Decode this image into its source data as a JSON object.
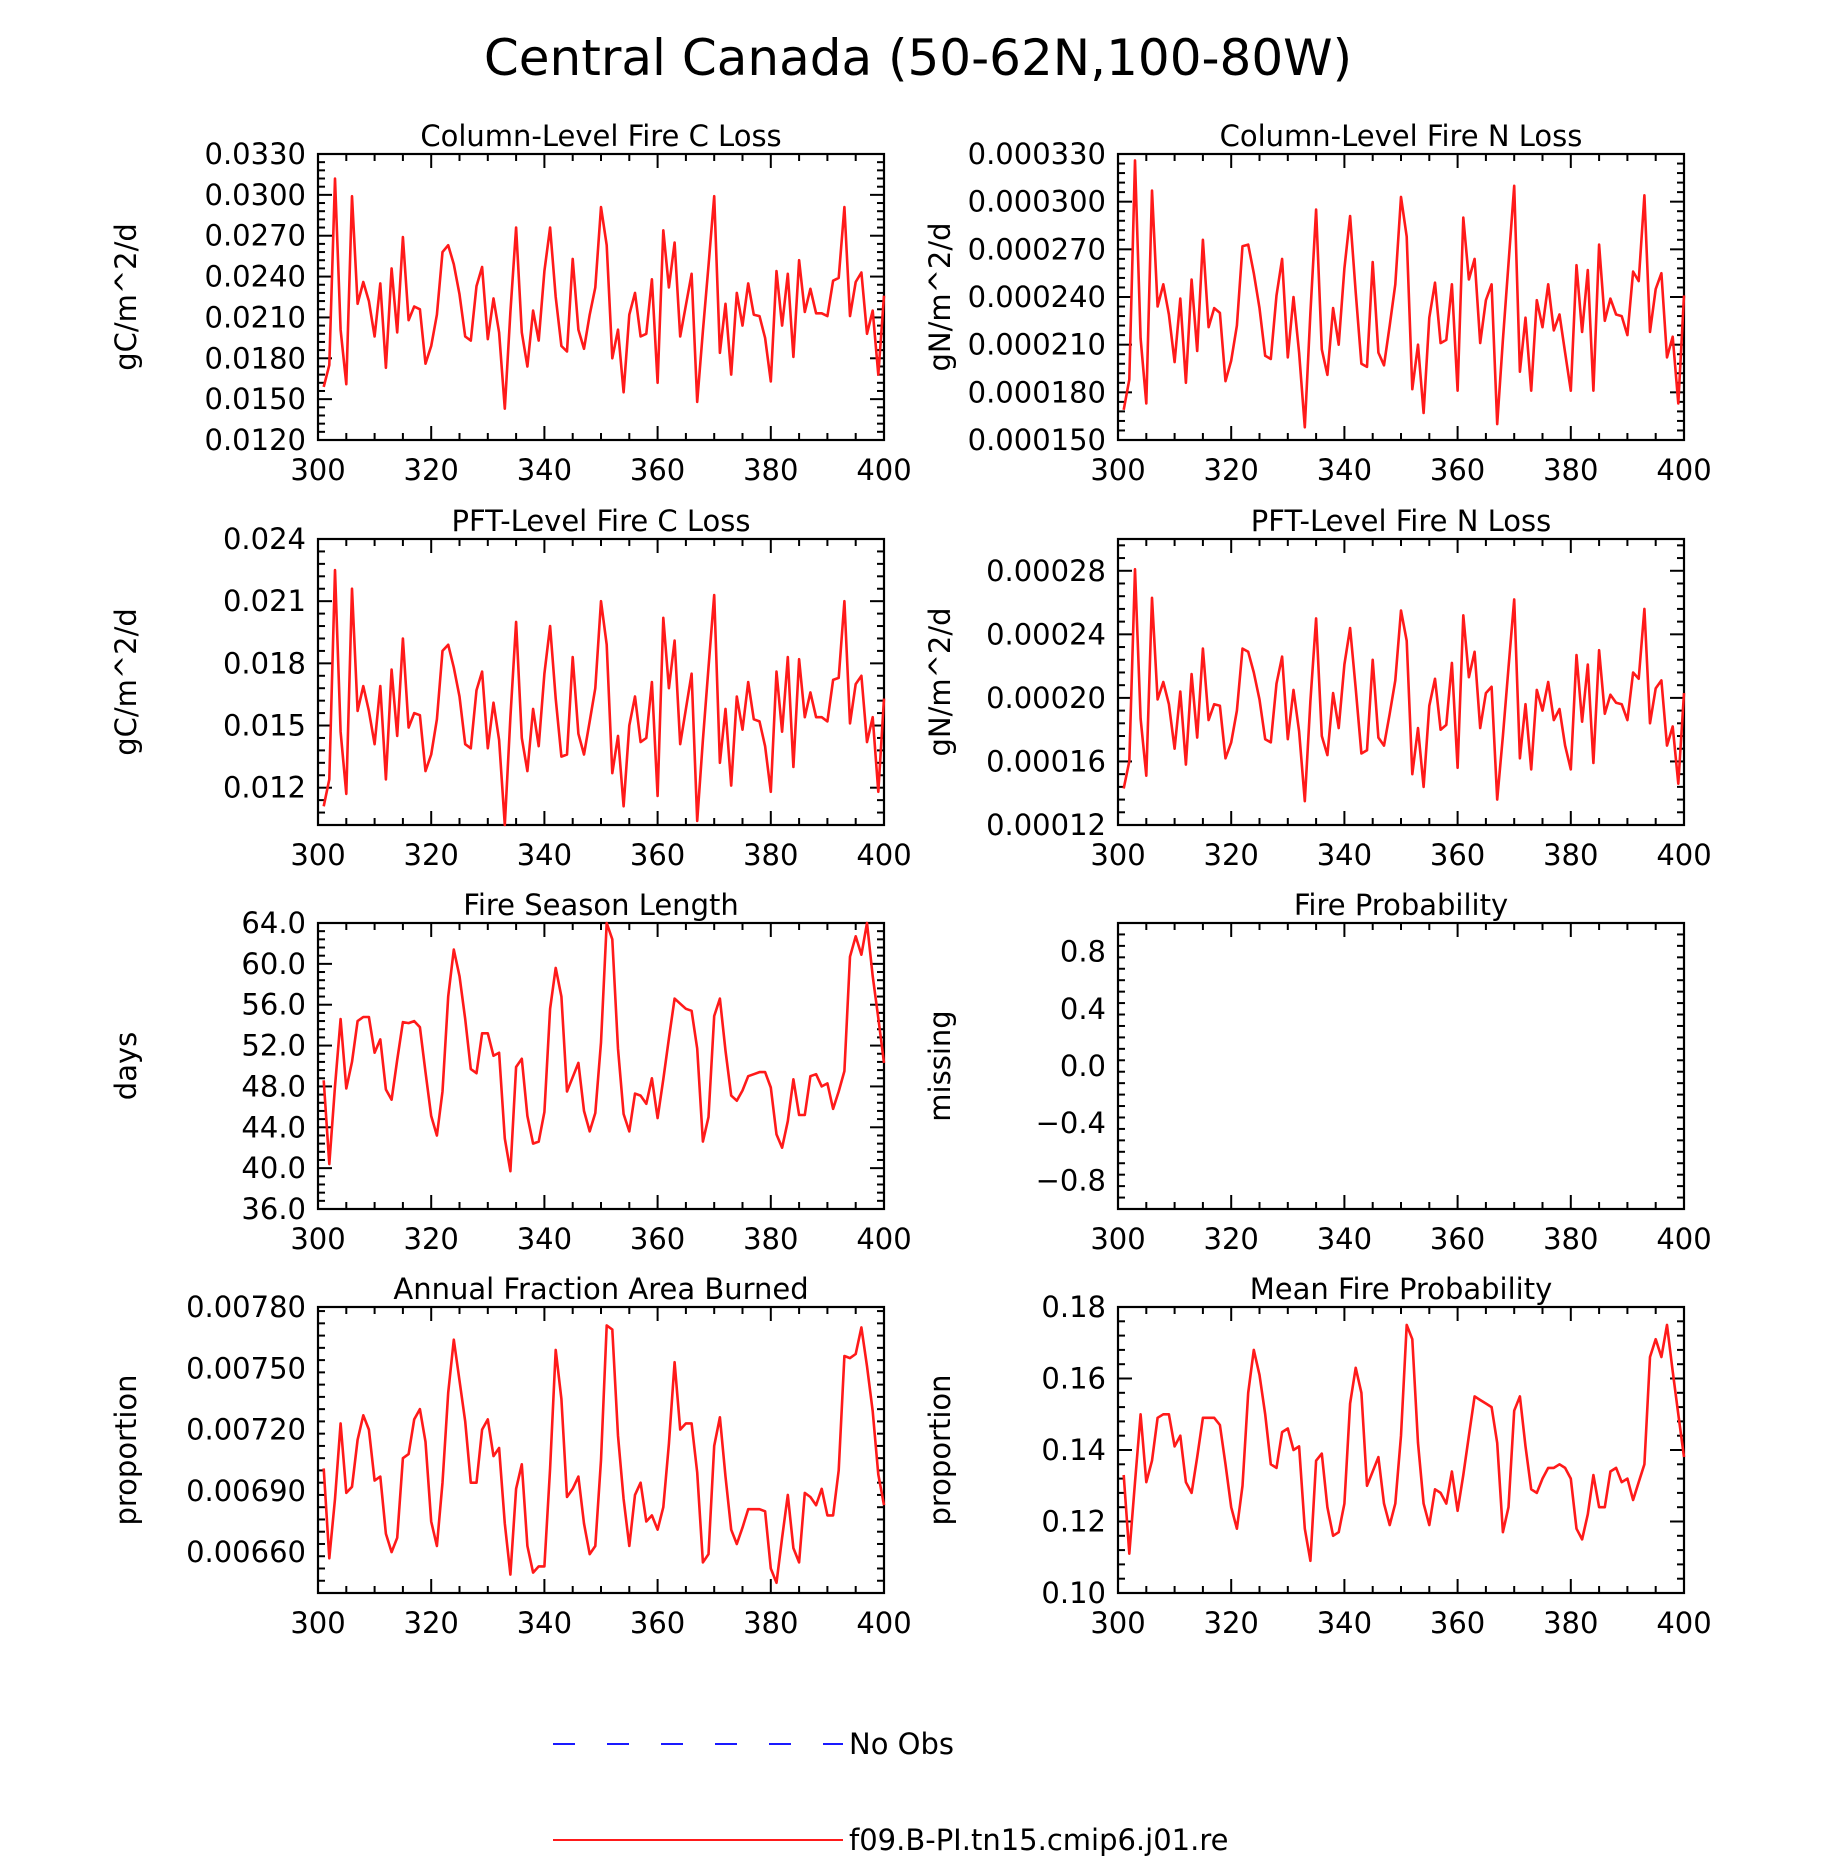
{
  "figure_title": "Central Canada (50-62N,100-80W)",
  "colors": {
    "model": "#ff1a1a",
    "obs": "#1a1aff",
    "axis": "#000000"
  },
  "legend": {
    "items": [
      {
        "label": "No Obs",
        "style": "dashed",
        "color": "#1a1aff"
      },
      {
        "label": "f09.B-PI.tn15.cmip6.j01.re",
        "style": "solid",
        "color": "#ff1a1a"
      }
    ]
  },
  "chart_data": [
    {
      "type": "line",
      "title": "Column-Level Fire C Loss",
      "ylabel": "gC/m^2/d",
      "xlabel": "",
      "xlim": [
        300,
        400
      ],
      "ylim": [
        0.012,
        0.033
      ],
      "xticks": [
        "300",
        "320",
        "340",
        "360",
        "380",
        "400"
      ],
      "yticks": [
        "0.0120",
        "0.0150",
        "0.0180",
        "0.0210",
        "0.0240",
        "0.0270",
        "0.0300",
        "0.0330"
      ],
      "x_start": 301,
      "series": [
        {
          "values": [
            0.0159,
            0.0175,
            0.0312,
            0.0201,
            0.0161,
            0.0299,
            0.022,
            0.0236,
            0.0222,
            0.0196,
            0.0235,
            0.0173,
            0.0246,
            0.0199,
            0.0269,
            0.0208,
            0.0218,
            0.0216,
            0.0176,
            0.0189,
            0.0212,
            0.0258,
            0.0263,
            0.0249,
            0.0227,
            0.0196,
            0.0193,
            0.0233,
            0.0247,
            0.0194,
            0.0224,
            0.0199,
            0.0143,
            0.0214,
            0.0276,
            0.0199,
            0.0174,
            0.0215,
            0.0193,
            0.0244,
            0.0276,
            0.0225,
            0.0189,
            0.0185,
            0.0253,
            0.0201,
            0.0187,
            0.0212,
            0.0232,
            0.0291,
            0.0263,
            0.018,
            0.0201,
            0.0155,
            0.0212,
            0.0228,
            0.0196,
            0.0198,
            0.0238,
            0.0162,
            0.0274,
            0.0232,
            0.0265,
            0.0196,
            0.0219,
            0.0242,
            0.0148,
            0.02,
            0.0248,
            0.0299,
            0.0184,
            0.022,
            0.0168,
            0.0228,
            0.0204,
            0.0235,
            0.0212,
            0.0211,
            0.0195,
            0.0163,
            0.0244,
            0.0204,
            0.0242,
            0.0181,
            0.0252,
            0.0214,
            0.0231,
            0.0213,
            0.0213,
            0.0211,
            0.0237,
            0.0239,
            0.0291,
            0.0211,
            0.0236,
            0.0243,
            0.0198,
            0.0215,
            0.0168,
            0.0226
          ]
        }
      ]
    },
    {
      "type": "line",
      "title": "Column-Level Fire N Loss",
      "ylabel": "gN/m^2/d",
      "xlabel": "",
      "xlim": [
        300,
        400
      ],
      "ylim": [
        0.00015,
        0.00033
      ],
      "xticks": [
        "300",
        "320",
        "340",
        "360",
        "380",
        "400"
      ],
      "yticks": [
        "0.000150",
        "0.000180",
        "0.000210",
        "0.000240",
        "0.000270",
        "0.000300",
        "0.000330"
      ],
      "x_start": 301,
      "series": [
        {
          "values": [
            0.000169,
            0.000188,
            0.000326,
            0.000214,
            0.000173,
            0.000307,
            0.000234,
            0.000248,
            0.000229,
            0.000199,
            0.000239,
            0.000186,
            0.000251,
            0.000206,
            0.000276,
            0.000221,
            0.000233,
            0.00023,
            0.000187,
            0.0002,
            0.000222,
            0.000272,
            0.000273,
            0.000255,
            0.000233,
            0.000203,
            0.000201,
            0.000241,
            0.000264,
            0.000202,
            0.00024,
            0.000205,
            0.000158,
            0.00023,
            0.000295,
            0.000207,
            0.000191,
            0.000233,
            0.00021,
            0.000258,
            0.000291,
            0.000243,
            0.000198,
            0.000196,
            0.000262,
            0.000205,
            0.000197,
            0.000222,
            0.000248,
            0.000303,
            0.000278,
            0.000182,
            0.00021,
            0.000167,
            0.000227,
            0.000249,
            0.000211,
            0.000213,
            0.000248,
            0.000181,
            0.00029,
            0.000251,
            0.000264,
            0.000211,
            0.000238,
            0.000248,
            0.00016,
            0.000213,
            0.000261,
            0.00031,
            0.000193,
            0.000227,
            0.000181,
            0.000238,
            0.000221,
            0.000248,
            0.000219,
            0.000229,
            0.000205,
            0.000181,
            0.00026,
            0.000218,
            0.000257,
            0.000181,
            0.000273,
            0.000225,
            0.000239,
            0.000229,
            0.000228,
            0.000216,
            0.000256,
            0.00025,
            0.000304,
            0.000218,
            0.000245,
            0.000255,
            0.000202,
            0.000215,
            0.000173,
            0.000241
          ]
        }
      ]
    },
    {
      "type": "line",
      "title": "PFT-Level Fire C Loss",
      "ylabel": "gC/m^2/d",
      "xlabel": "",
      "xlim": [
        300,
        400
      ],
      "ylim": [
        0.0102,
        0.024
      ],
      "xticks": [
        "300",
        "320",
        "340",
        "360",
        "380",
        "400"
      ],
      "yticks": [
        "0.012",
        "0.015",
        "0.018",
        "0.021",
        "0.024"
      ],
      "x_start": 301,
      "series": [
        {
          "values": [
            0.0111,
            0.0124,
            0.0225,
            0.0147,
            0.0117,
            0.0216,
            0.0157,
            0.0169,
            0.0157,
            0.0141,
            0.0169,
            0.0124,
            0.0177,
            0.0145,
            0.0192,
            0.0149,
            0.0156,
            0.0155,
            0.0128,
            0.0136,
            0.0153,
            0.0186,
            0.0189,
            0.0178,
            0.0164,
            0.0141,
            0.0139,
            0.0167,
            0.0176,
            0.0139,
            0.0161,
            0.0143,
            0.0102,
            0.0154,
            0.02,
            0.0144,
            0.0128,
            0.0158,
            0.014,
            0.0175,
            0.0198,
            0.0163,
            0.0135,
            0.0136,
            0.0183,
            0.0146,
            0.0136,
            0.0152,
            0.0168,
            0.021,
            0.0189,
            0.0127,
            0.0145,
            0.0111,
            0.015,
            0.0164,
            0.0142,
            0.0144,
            0.0171,
            0.0116,
            0.0202,
            0.0168,
            0.0191,
            0.0141,
            0.0158,
            0.0175,
            0.0104,
            0.0143,
            0.0178,
            0.0213,
            0.0132,
            0.0158,
            0.0121,
            0.0164,
            0.0148,
            0.0171,
            0.0153,
            0.0152,
            0.014,
            0.0118,
            0.0176,
            0.0147,
            0.0183,
            0.013,
            0.0182,
            0.0154,
            0.0166,
            0.0154,
            0.0154,
            0.0152,
            0.0172,
            0.0173,
            0.021,
            0.0151,
            0.017,
            0.0174,
            0.0142,
            0.0154,
            0.0118,
            0.0163
          ]
        }
      ]
    },
    {
      "type": "line",
      "title": "PFT-Level Fire N Loss",
      "ylabel": "gN/m^2/d",
      "xlabel": "",
      "xlim": [
        300,
        400
      ],
      "ylim": [
        0.00012,
        0.0003
      ],
      "xticks": [
        "300",
        "320",
        "340",
        "360",
        "380",
        "400"
      ],
      "yticks": [
        "0.00012",
        "0.00016",
        "0.00020",
        "0.00024",
        "0.00028"
      ],
      "x_start": 301,
      "series": [
        {
          "values": [
            0.000143,
            0.00016,
            0.000281,
            0.000187,
            0.000151,
            0.000263,
            0.000199,
            0.00021,
            0.000196,
            0.000168,
            0.000204,
            0.000158,
            0.000215,
            0.000175,
            0.000231,
            0.000186,
            0.000196,
            0.000195,
            0.000162,
            0.000172,
            0.000192,
            0.000231,
            0.000229,
            0.000216,
            0.000199,
            0.000174,
            0.000172,
            0.000209,
            0.000226,
            0.000174,
            0.000205,
            0.000179,
            0.000135,
            0.000198,
            0.00025,
            0.000176,
            0.000164,
            0.000203,
            0.000181,
            0.000221,
            0.000244,
            0.000206,
            0.000165,
            0.000167,
            0.000224,
            0.000175,
            0.00017,
            0.00019,
            0.000211,
            0.000255,
            0.000236,
            0.000152,
            0.000181,
            0.000144,
            0.000195,
            0.000212,
            0.00018,
            0.000183,
            0.000222,
            0.000156,
            0.000252,
            0.000213,
            0.000229,
            0.000181,
            0.000203,
            0.000207,
            0.000136,
            0.000176,
            0.000219,
            0.000262,
            0.000162,
            0.000196,
            0.000155,
            0.000205,
            0.000192,
            0.00021,
            0.000186,
            0.000193,
            0.00017,
            0.000155,
            0.000227,
            0.000185,
            0.000221,
            0.000159,
            0.00023,
            0.00019,
            0.000202,
            0.000197,
            0.000196,
            0.000186,
            0.000216,
            0.000212,
            0.000256,
            0.000184,
            0.000206,
            0.000211,
            0.00017,
            0.000182,
            0.000146,
            0.000203
          ]
        }
      ]
    },
    {
      "type": "line",
      "title": "Fire Season Length",
      "ylabel": "days",
      "xlabel": "",
      "xlim": [
        300,
        400
      ],
      "ylim": [
        36,
        64
      ],
      "xticks": [
        "300",
        "320",
        "340",
        "360",
        "380",
        "400"
      ],
      "yticks": [
        "36.0",
        "40.0",
        "44.0",
        "48.0",
        "52.0",
        "56.0",
        "60.0",
        "64.0"
      ],
      "x_start": 301,
      "series": [
        {
          "values": [
            48.6,
            40.4,
            48.0,
            54.6,
            47.8,
            50.4,
            54.4,
            54.8,
            54.8,
            51.3,
            52.6,
            47.7,
            46.7,
            50.6,
            54.3,
            54.2,
            54.4,
            53.8,
            49.4,
            45.1,
            43.2,
            47.5,
            56.8,
            61.4,
            58.8,
            54.6,
            49.7,
            49.3,
            53.2,
            53.2,
            51.0,
            51.3,
            42.9,
            39.7,
            49.9,
            50.7,
            45.1,
            42.4,
            42.6,
            45.5,
            55.6,
            59.6,
            56.8,
            47.5,
            48.9,
            50.3,
            45.6,
            43.6,
            45.4,
            52.3,
            64.0,
            62.4,
            51.7,
            45.3,
            43.6,
            47.3,
            47.1,
            46.3,
            48.8,
            44.9,
            48.7,
            52.7,
            56.6,
            56.1,
            55.6,
            55.4,
            51.7,
            42.6,
            45.0,
            54.9,
            56.6,
            51.5,
            47.1,
            46.6,
            47.6,
            49.0,
            49.2,
            49.4,
            49.4,
            47.9,
            43.3,
            42.0,
            44.6,
            48.7,
            45.2,
            45.2,
            49.0,
            49.2,
            48.0,
            48.3,
            45.8,
            47.5,
            49.5,
            60.7,
            62.7,
            60.9,
            64.0,
            58.8,
            54.7,
            50.3
          ]
        }
      ]
    },
    {
      "type": "line",
      "title": "Fire Probability",
      "ylabel": "missing",
      "xlabel": "",
      "xlim": [
        300,
        400
      ],
      "ylim": [
        -1,
        1
      ],
      "xticks": [
        "300",
        "320",
        "340",
        "360",
        "380",
        "400"
      ],
      "yticks": [
        "-0.8",
        "-0.4",
        "0.0",
        "0.4",
        "0.8"
      ],
      "ytick_values": [
        -0.8,
        -0.4,
        0,
        0.4,
        0.8
      ],
      "x_start": 301,
      "series": []
    },
    {
      "type": "line",
      "title": "Annual Fraction Area Burned",
      "ylabel": "proportion",
      "xlabel": "",
      "xlim": [
        300,
        400
      ],
      "ylim": [
        0.0064,
        0.0078
      ],
      "xticks": [
        "300",
        "320",
        "340",
        "360",
        "380",
        "400"
      ],
      "yticks": [
        "0.00660",
        "0.00690",
        "0.00720",
        "0.00750",
        "0.00780"
      ],
      "x_start": 301,
      "series": [
        {
          "values": [
            0.00701,
            0.00657,
            0.00686,
            0.00723,
            0.00689,
            0.00692,
            0.00715,
            0.00727,
            0.0072,
            0.00695,
            0.00697,
            0.00669,
            0.0066,
            0.00667,
            0.00706,
            0.00708,
            0.00725,
            0.0073,
            0.00714,
            0.00675,
            0.00663,
            0.00694,
            0.00738,
            0.00764,
            0.00744,
            0.00724,
            0.00694,
            0.00694,
            0.0072,
            0.00725,
            0.00707,
            0.00711,
            0.00674,
            0.00649,
            0.00691,
            0.00703,
            0.00663,
            0.0065,
            0.00653,
            0.00653,
            0.00701,
            0.00759,
            0.00735,
            0.00687,
            0.00691,
            0.00697,
            0.00674,
            0.00659,
            0.00663,
            0.00705,
            0.00771,
            0.00769,
            0.00717,
            0.00686,
            0.00663,
            0.00688,
            0.00694,
            0.00675,
            0.00678,
            0.00671,
            0.00682,
            0.00713,
            0.00753,
            0.0072,
            0.00723,
            0.00723,
            0.00699,
            0.00655,
            0.00659,
            0.00712,
            0.00726,
            0.00697,
            0.00671,
            0.00664,
            0.00672,
            0.00681,
            0.00681,
            0.00681,
            0.0068,
            0.00652,
            0.00645,
            0.00667,
            0.00688,
            0.00662,
            0.00655,
            0.00689,
            0.00687,
            0.00683,
            0.00691,
            0.00678,
            0.00678,
            0.007,
            0.00756,
            0.00755,
            0.00757,
            0.0077,
            0.00751,
            0.00729,
            0.00698,
            0.00683
          ]
        }
      ]
    },
    {
      "type": "line",
      "title": "Mean Fire Probability",
      "ylabel": "proportion",
      "xlabel": "",
      "xlim": [
        300,
        400
      ],
      "ylim": [
        0.1,
        0.18
      ],
      "xticks": [
        "300",
        "320",
        "340",
        "360",
        "380",
        "400"
      ],
      "yticks": [
        "0.10",
        "0.12",
        "0.14",
        "0.16",
        "0.18"
      ],
      "x_start": 301,
      "series": [
        {
          "values": [
            0.133,
            0.111,
            0.131,
            0.15,
            0.131,
            0.137,
            0.149,
            0.15,
            0.15,
            0.141,
            0.144,
            0.131,
            0.128,
            0.138,
            0.149,
            0.149,
            0.149,
            0.147,
            0.136,
            0.124,
            0.118,
            0.13,
            0.156,
            0.168,
            0.161,
            0.15,
            0.136,
            0.135,
            0.145,
            0.146,
            0.14,
            0.141,
            0.118,
            0.109,
            0.137,
            0.139,
            0.124,
            0.116,
            0.117,
            0.125,
            0.153,
            0.163,
            0.156,
            0.13,
            0.134,
            0.138,
            0.125,
            0.119,
            0.125,
            0.144,
            0.175,
            0.171,
            0.142,
            0.125,
            0.119,
            0.129,
            0.128,
            0.125,
            0.134,
            0.123,
            0.133,
            0.144,
            0.155,
            0.154,
            0.153,
            0.152,
            0.142,
            0.117,
            0.124,
            0.151,
            0.155,
            0.141,
            0.129,
            0.128,
            0.132,
            0.135,
            0.135,
            0.136,
            0.135,
            0.132,
            0.118,
            0.115,
            0.122,
            0.133,
            0.124,
            0.124,
            0.134,
            0.135,
            0.131,
            0.132,
            0.126,
            0.131,
            0.136,
            0.166,
            0.171,
            0.166,
            0.175,
            0.162,
            0.15,
            0.138
          ]
        }
      ]
    }
  ]
}
